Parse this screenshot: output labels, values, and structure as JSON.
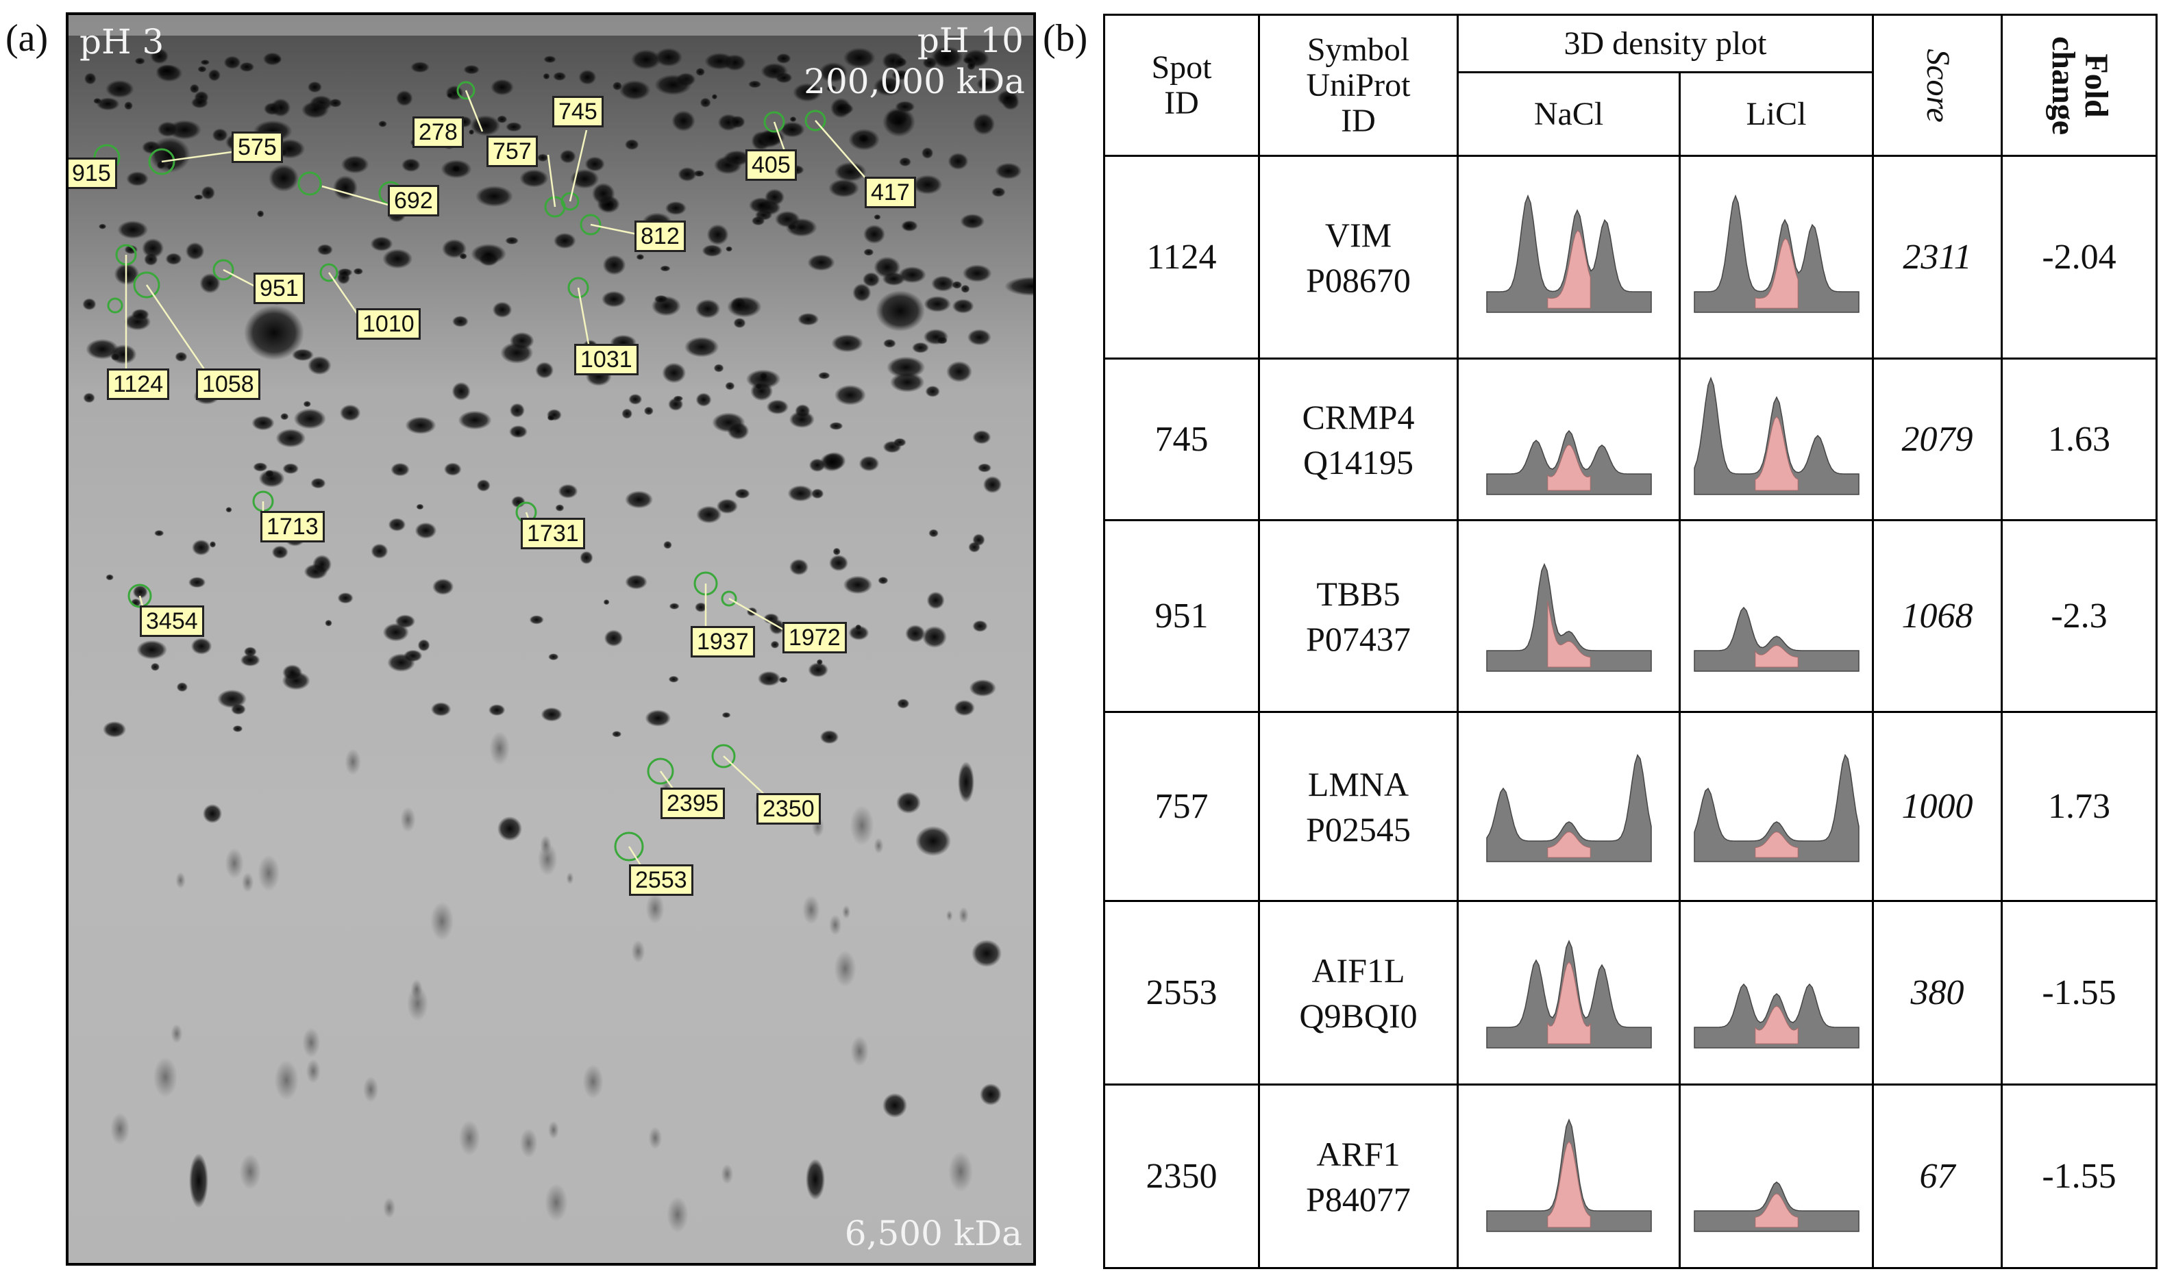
{
  "panel_a": {
    "letter": "(a)",
    "ph_low": "pH 3",
    "ph_high": "pH 10",
    "mw_high": "200,000 kDa",
    "mw_low": "6,500 kDa",
    "spot_labels": [
      "915",
      "575",
      "278",
      "745",
      "757",
      "692",
      "812",
      "405",
      "417",
      "951",
      "1010",
      "1031",
      "1124",
      "1058",
      "1713",
      "1731",
      "3454",
      "1937",
      "1972",
      "2395",
      "2350",
      "2553"
    ]
  },
  "panel_b": {
    "letter": "(b)",
    "headers": {
      "spot_id": "Spot ID",
      "symbol": "Symbol UniProt ID",
      "plot_group": "3D density plot",
      "nacl": "NaCl",
      "licl": "LiCl",
      "score": "Score",
      "fold": "Fold change"
    },
    "rows": [
      {
        "spot": "1124",
        "symbol": "VIM",
        "uniprot": "P08670",
        "score": "2311",
        "fold": "-2.04"
      },
      {
        "spot": "745",
        "symbol": "CRMP4",
        "uniprot": "Q14195",
        "score": "2079",
        "fold": "1.63"
      },
      {
        "spot": "951",
        "symbol": "TBB5",
        "uniprot": "P07437",
        "score": "1068",
        "fold": "-2.3"
      },
      {
        "spot": "757",
        "symbol": "LMNA",
        "uniprot": "P02545",
        "score": "1000",
        "fold": "1.73"
      },
      {
        "spot": "2553",
        "symbol": "AIF1L",
        "uniprot": "Q9BQI0",
        "score": "380",
        "fold": "-1.55"
      },
      {
        "spot": "2350",
        "symbol": "ARF1",
        "uniprot": "P84077",
        "score": "67",
        "fold": "-1.55"
      }
    ]
  }
}
